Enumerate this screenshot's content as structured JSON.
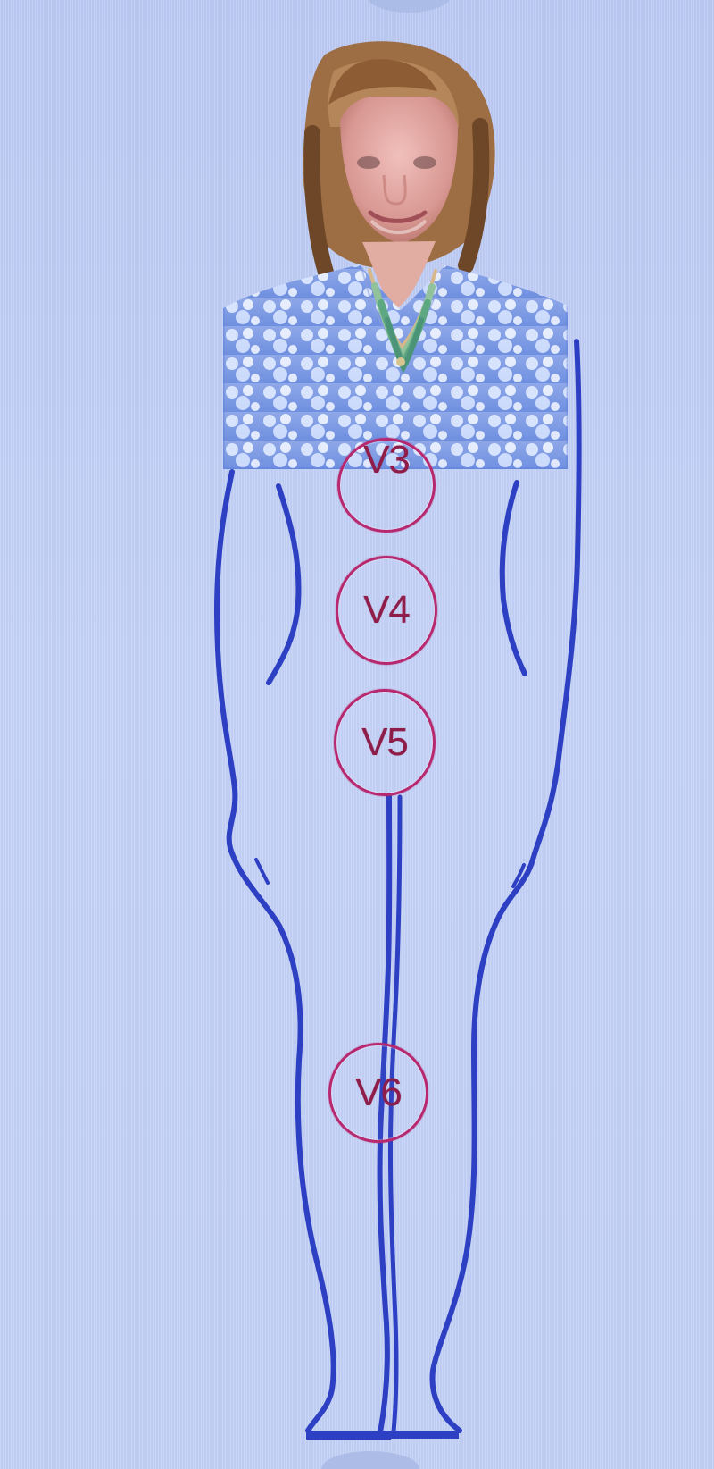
{
  "screen": {
    "title": "",
    "points": [
      {
        "id": "v3",
        "label": "V3"
      },
      {
        "id": "v4",
        "label": "V4"
      },
      {
        "id": "v5",
        "label": "V5"
      },
      {
        "id": "v6",
        "label": "V6"
      }
    ]
  },
  "colors": {
    "background": "#c2cff4",
    "outline": "#2d3fc2",
    "marker": "#b7286e"
  },
  "icons": {
    "figure": "human-body-outline-icon",
    "portrait": "person-photo-icon"
  }
}
